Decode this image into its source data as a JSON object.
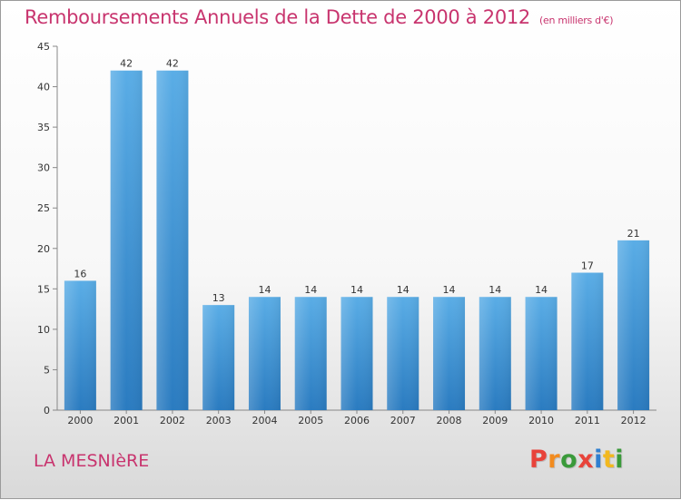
{
  "title": "Remboursements Annuels de la Dette de 2000 à 2012",
  "subtitle": "(en milliers d'€)",
  "commune": "LA MESNIèRE",
  "logo": {
    "letters": [
      "P",
      "r",
      "o",
      "x",
      "i",
      "t",
      "i"
    ],
    "colors": [
      "#e8433a",
      "#f28b1f",
      "#3a9a3a",
      "#e8433a",
      "#2f7fd0",
      "#f2b81f",
      "#3a9a3a"
    ]
  },
  "colors": {
    "bar_top": "#5aade6",
    "bar_bottom": "#2a7bc0",
    "title": "#c8346e"
  },
  "chart_data": {
    "type": "bar",
    "categories": [
      "2000",
      "2001",
      "2002",
      "2003",
      "2004",
      "2005",
      "2006",
      "2007",
      "2008",
      "2009",
      "2010",
      "2011",
      "2012"
    ],
    "values": [
      16,
      42,
      42,
      13,
      14,
      14,
      14,
      14,
      14,
      14,
      14,
      17,
      21
    ],
    "ylim": [
      0,
      45
    ],
    "yticks": [
      0,
      5,
      10,
      15,
      20,
      25,
      30,
      35,
      40,
      45
    ],
    "grid": false
  }
}
